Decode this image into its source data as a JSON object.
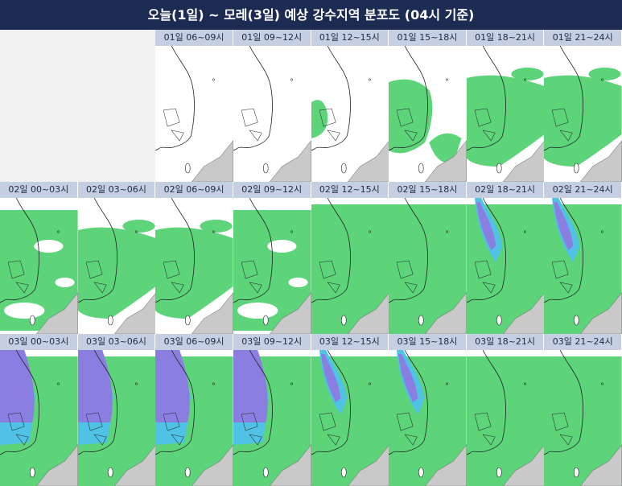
{
  "header": {
    "title": "오늘(1일) ~ 모레(3일) 예상 강수지역 분포도 (04시 기준)"
  },
  "panels": {
    "row1": [
      "01일 06~09시",
      "01일 09~12시",
      "01일 12~15시",
      "01일 15~18시",
      "01일 18~21시",
      "01일 21~24시"
    ],
    "row2": [
      "02일 00~03시",
      "02일 03~06시",
      "02일 06~09시",
      "02일 09~12시",
      "02일 12~15시",
      "02일 15~18시",
      "02일 18~21시",
      "02일 21~24시"
    ],
    "row3": [
      "03일 00~03시",
      "03일 03~06시",
      "03일 06~09시",
      "03일 09~12시",
      "03일 12~15시",
      "03일 15~18시",
      "03일 18~21시",
      "03일 21~24시"
    ]
  }
}
